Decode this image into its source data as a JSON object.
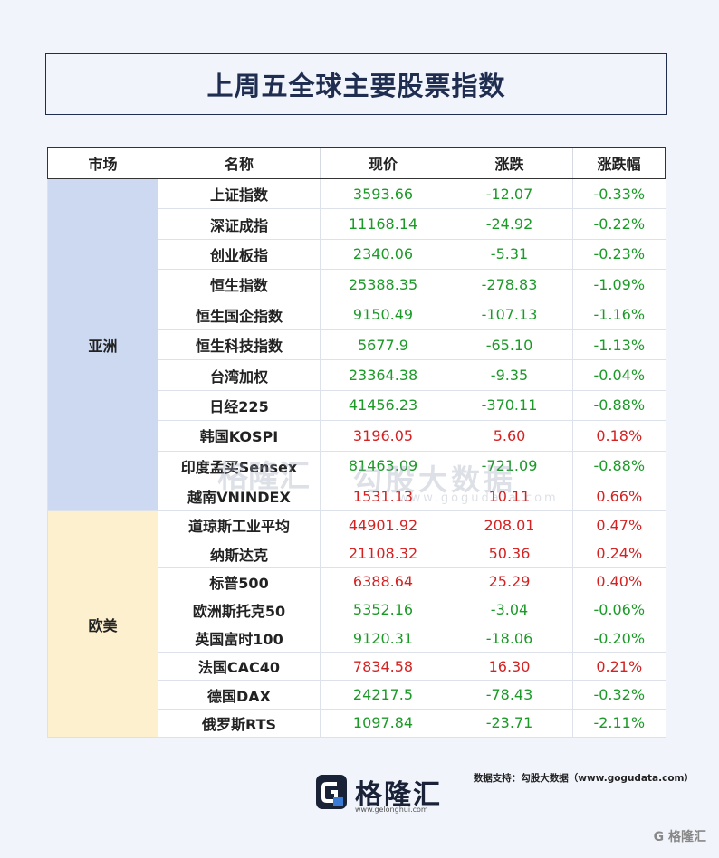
{
  "title": "上周五全球主要股票指数",
  "header": {
    "market": "市场",
    "name": "名称",
    "price": "现价",
    "change": "涨跌",
    "change_pct": "涨跌幅"
  },
  "regions": {
    "asia": "亚洲",
    "europe_us": "欧美"
  },
  "rows": [
    {
      "name": "上证指数",
      "price": "3593.66",
      "change": "-12.07",
      "pct": "-0.33%",
      "dir": "down"
    },
    {
      "name": "深证成指",
      "price": "11168.14",
      "change": "-24.92",
      "pct": "-0.22%",
      "dir": "down"
    },
    {
      "name": "创业板指",
      "price": "2340.06",
      "change": "-5.31",
      "pct": "-0.23%",
      "dir": "down"
    },
    {
      "name": "恒生指数",
      "price": "25388.35",
      "change": "-278.83",
      "pct": "-1.09%",
      "dir": "down"
    },
    {
      "name": "恒生国企指数",
      "price": "9150.49",
      "change": "-107.13",
      "pct": "-1.16%",
      "dir": "down"
    },
    {
      "name": "恒生科技指数",
      "price": "5677.9",
      "change": "-65.10",
      "pct": "-1.13%",
      "dir": "down"
    },
    {
      "name": "台湾加权",
      "price": "23364.38",
      "change": "-9.35",
      "pct": "-0.04%",
      "dir": "down"
    },
    {
      "name": "日经225",
      "price": "41456.23",
      "change": "-370.11",
      "pct": "-0.88%",
      "dir": "down"
    },
    {
      "name": "韩国KOSPI",
      "price": "3196.05",
      "change": "5.60",
      "pct": "0.18%",
      "dir": "up"
    },
    {
      "name": "印度孟买Sensex",
      "price": "81463.09",
      "change": "-721.09",
      "pct": "-0.88%",
      "dir": "down"
    },
    {
      "name": "越南VNINDEX",
      "price": "1531.13",
      "change": "10.11",
      "pct": "0.66%",
      "dir": "up"
    },
    {
      "name": "道琼斯工业平均",
      "price": "44901.92",
      "change": "208.01",
      "pct": "0.47%",
      "dir": "up"
    },
    {
      "name": "纳斯达克",
      "price": "21108.32",
      "change": "50.36",
      "pct": "0.24%",
      "dir": "up"
    },
    {
      "name": "标普500",
      "price": "6388.64",
      "change": "25.29",
      "pct": "0.40%",
      "dir": "up"
    },
    {
      "name": "欧洲斯托克50",
      "price": "5352.16",
      "change": "-3.04",
      "pct": "-0.06%",
      "dir": "down"
    },
    {
      "name": "英国富时100",
      "price": "9120.31",
      "change": "-18.06",
      "pct": "-0.20%",
      "dir": "down"
    },
    {
      "name": "法国CAC40",
      "price": "7834.58",
      "change": "16.30",
      "pct": "0.21%",
      "dir": "up"
    },
    {
      "name": "德国DAX",
      "price": "24217.5",
      "change": "-78.43",
      "pct": "-0.32%",
      "dir": "down"
    },
    {
      "name": "俄罗斯RTS",
      "price": "1097.84",
      "change": "-23.71",
      "pct": "-2.11%",
      "dir": "down"
    }
  ],
  "watermark": {
    "name": "格隆汇",
    "site": "勾股大数据",
    "url": "www.gogudata.com"
  },
  "source": "数据支持：勾股大数据（www.gogudata.com）",
  "brand": {
    "name": "格隆汇",
    "url": "www.gelonghui.com"
  },
  "corner_mark": "G 格隆汇",
  "colors": {
    "up": "#d42222",
    "down": "#1c9a28",
    "title": "#1f2d50",
    "asia_bg": "#ccd9f1",
    "europe_bg": "#fdf0cf"
  }
}
